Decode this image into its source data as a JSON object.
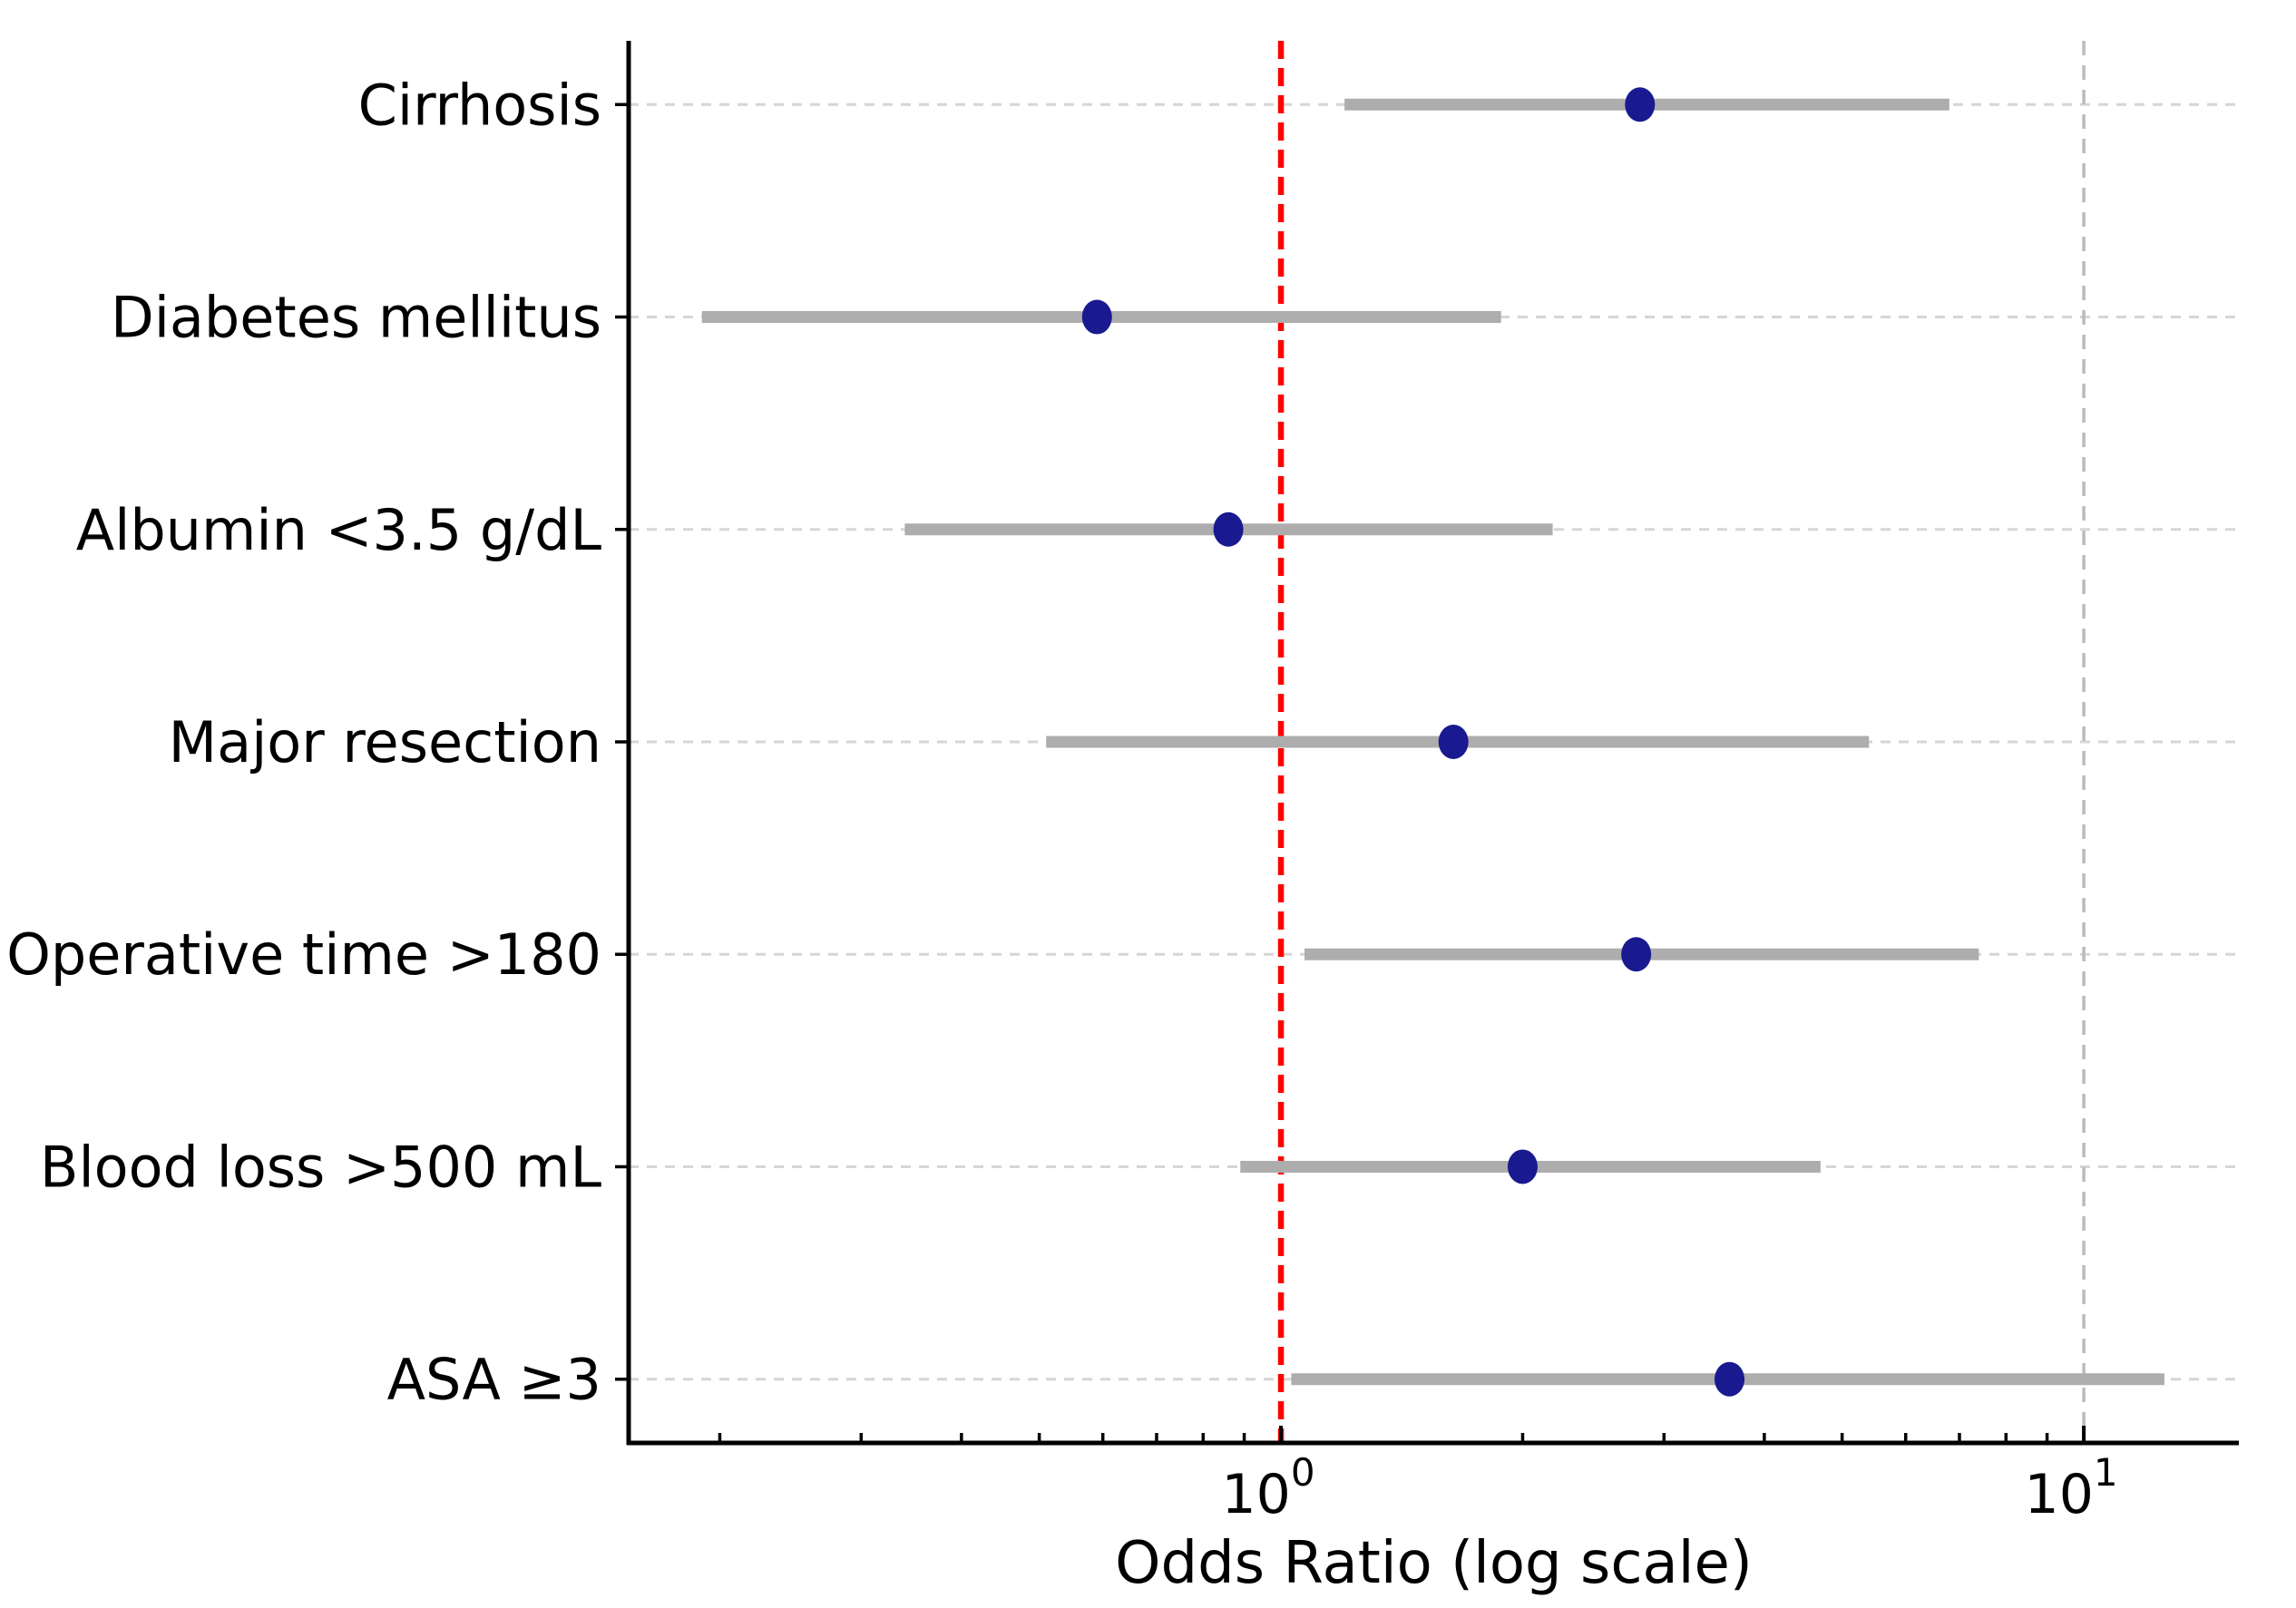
{
  "chart_data": {
    "type": "scatter",
    "subtype": "forest-plot",
    "title": "",
    "xlabel": "Odds Ratio (log scale)",
    "ylabel": "",
    "x_scale": "log",
    "xlim": [
      0.154,
      15.6
    ],
    "reference_line_x": 1.0,
    "grid": "dashed row gridlines + major vertical gridline at 10",
    "legend": "none",
    "x_major_ticks": [
      {
        "value": 1,
        "base": "10",
        "exp": "0"
      },
      {
        "value": 10,
        "base": "10",
        "exp": "1"
      }
    ],
    "x_minor_ticks": [
      0.2,
      0.3,
      0.4,
      0.5,
      0.6,
      0.7,
      0.8,
      0.9,
      2,
      3,
      4,
      5,
      6,
      7,
      8,
      9
    ],
    "rows": [
      {
        "label": "Cirrhosis",
        "or": 2.8,
        "ci_low": 1.2,
        "ci_high": 6.8
      },
      {
        "label": "Diabetes mellitus",
        "or": 0.59,
        "ci_low": 0.19,
        "ci_high": 1.88
      },
      {
        "label": "Albumin <3.5 g/dL",
        "or": 0.86,
        "ci_low": 0.34,
        "ci_high": 2.18
      },
      {
        "label": "Major resection",
        "or": 1.64,
        "ci_low": 0.51,
        "ci_high": 5.4
      },
      {
        "label": "Operative time >180",
        "or": 2.77,
        "ci_low": 1.07,
        "ci_high": 7.4
      },
      {
        "label": "Blood loss >500 mL",
        "or": 2.0,
        "ci_low": 0.89,
        "ci_high": 4.7
      },
      {
        "label": "ASA ≥3",
        "or": 3.62,
        "ci_low": 1.03,
        "ci_high": 12.6
      }
    ]
  },
  "colors": {
    "point": "#191990",
    "ci_bar": "#adadad",
    "reference_line": "#fe0000",
    "major_gridline": "#bbbbbb",
    "row_gridline": "#d6d6d6",
    "axis": "#000000",
    "background": "#ffffff"
  }
}
